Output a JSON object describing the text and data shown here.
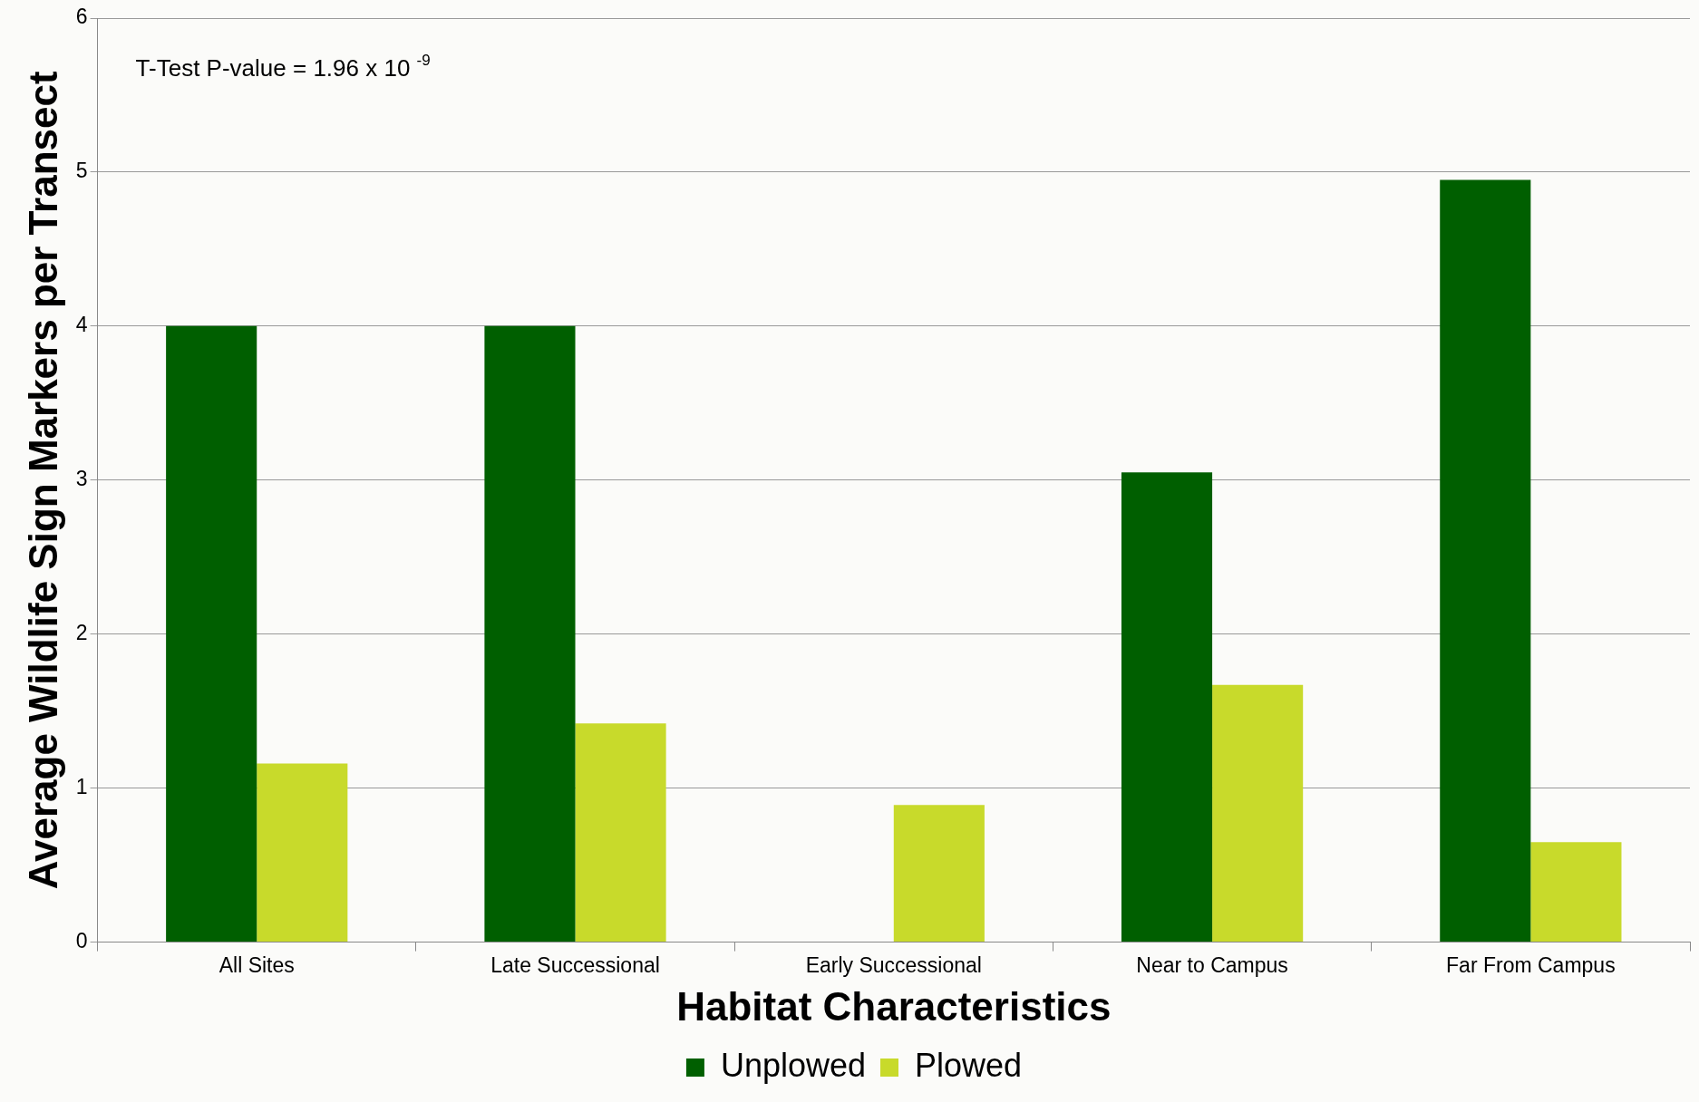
{
  "chart_data": {
    "type": "bar",
    "xlabel": "Habitat Characteristics",
    "ylabel": "Average Wildlife Sign Markers per Transect",
    "categories": [
      "All Sites",
      "Late Successional",
      "Early Successional",
      "Near to Campus",
      "Far From Campus"
    ],
    "series": [
      {
        "name": "Unplowed",
        "color": "#005f00",
        "values": [
          4,
          4,
          0,
          3.05,
          4.95
        ]
      },
      {
        "name": "Plowed",
        "color": "#c8da2b",
        "values": [
          1.16,
          1.42,
          0.89,
          1.67,
          0.65
        ]
      }
    ],
    "ylim": [
      0,
      6
    ],
    "yticks": [
      0,
      1,
      2,
      3,
      4,
      5,
      6
    ],
    "grid": "y",
    "legend": "bottom",
    "annotations": [
      "T-Test P-value = 1.96 x 10 $^{-9}$"
    ]
  }
}
